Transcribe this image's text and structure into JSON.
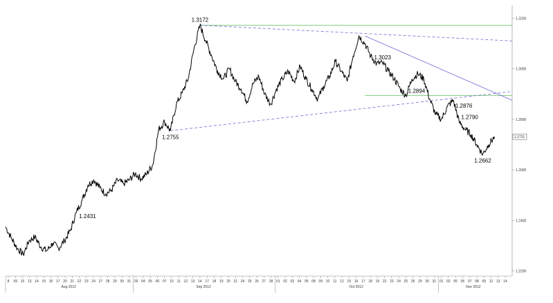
{
  "chart_data": {
    "type": "line",
    "instrument_note": "",
    "title": "",
    "xlabel": "",
    "ylabel": "",
    "ylim": [
      1.218,
      1.325
    ],
    "y_ticks": [
      "1.2200",
      "1.2400",
      "1.2600",
      "1.2800",
      "1.3000",
      "1.3200"
    ],
    "y_tick_values": [
      1.22,
      1.24,
      1.26,
      1.28,
      1.3,
      1.32
    ],
    "last_price_label": "1.2731",
    "last_price_value": 1.2731,
    "colors": {
      "price": "#000000",
      "horizontal_level": "#7fc97f",
      "trendline": "#6b6bd6",
      "axis": "#888888"
    },
    "months": [
      {
        "label": "Aug 2012",
        "start_tick": 1,
        "end_tick": 24
      },
      {
        "label": "Sep 2012",
        "start_tick": 25,
        "end_tick": 47
      },
      {
        "label": "Oct 2012",
        "start_tick": 48,
        "end_tick": 71
      },
      {
        "label": "Nov 2012",
        "start_tick": 72,
        "end_tick": 82
      }
    ],
    "x_ticks": [
      "8",
      "09",
      "10",
      "13",
      "14",
      "15",
      "16",
      "17",
      "20",
      "21",
      "22",
      "23",
      "24",
      "27",
      "28",
      "29",
      "30",
      "31",
      "03",
      "04",
      "05",
      "06",
      "07",
      "10",
      "11",
      "12",
      "13",
      "14",
      "17",
      "18",
      "19",
      "20",
      "21",
      "24",
      "25",
      "26",
      "27",
      "28",
      "01",
      "02",
      "03",
      "04",
      "05",
      "08",
      "09",
      "10",
      "11",
      "12",
      "15",
      "16",
      "17",
      "18",
      "19",
      "22",
      "23",
      "24",
      "25",
      "26",
      "29",
      "30",
      "31",
      "01",
      "02",
      "05",
      "06",
      "07",
      "08",
      "09",
      "12",
      "13",
      "14"
    ],
    "series": [
      {
        "points": [
          [
            0,
            1.2375
          ],
          [
            1,
            1.233
          ],
          [
            2,
            1.229
          ],
          [
            3,
            1.2265
          ],
          [
            4,
            1.232
          ],
          [
            5,
            1.2335
          ],
          [
            6,
            1.2295
          ],
          [
            7,
            1.228
          ],
          [
            8,
            1.231
          ],
          [
            9,
            1.229
          ],
          [
            10,
            1.232
          ],
          [
            11,
            1.236
          ],
          [
            12,
            1.2431
          ],
          [
            13,
            1.248
          ],
          [
            14,
            1.254
          ],
          [
            15,
            1.256
          ],
          [
            16,
            1.253
          ],
          [
            17,
            1.2505
          ],
          [
            18,
            1.252
          ],
          [
            19,
            1.256
          ],
          [
            20,
            1.2545
          ],
          [
            21,
            1.256
          ],
          [
            22,
            1.2585
          ],
          [
            23,
            1.2565
          ],
          [
            24,
            1.2585
          ],
          [
            25,
            1.262
          ],
          [
            26,
            1.276
          ],
          [
            27,
            1.279
          ],
          [
            28,
            1.2755
          ],
          [
            29,
            1.286
          ],
          [
            30,
            1.2905
          ],
          [
            31,
            1.296
          ],
          [
            32,
            1.308
          ],
          [
            33,
            1.3172
          ],
          [
            34,
            1.311
          ],
          [
            35,
            1.305
          ],
          [
            36,
            1.299
          ],
          [
            37,
            1.296
          ],
          [
            38,
            1.3
          ],
          [
            39,
            1.295
          ],
          [
            40,
            1.292
          ],
          [
            41,
            1.287
          ],
          [
            42,
            1.294
          ],
          [
            43,
            1.297
          ],
          [
            44,
            1.29
          ],
          [
            45,
            1.286
          ],
          [
            46,
            1.292
          ],
          [
            47,
            1.296
          ],
          [
            48,
            1.299
          ],
          [
            49,
            1.295
          ],
          [
            50,
            1.301
          ],
          [
            51,
            1.296
          ],
          [
            52,
            1.292
          ],
          [
            53,
            1.288
          ],
          [
            54,
            1.293
          ],
          [
            55,
            1.297
          ],
          [
            56,
            1.303
          ],
          [
            57,
            1.299
          ],
          [
            58,
            1.295
          ],
          [
            59,
            1.305
          ],
          [
            60,
            1.313
          ],
          [
            61,
            1.31
          ],
          [
            62,
            1.305
          ],
          [
            63,
            1.302
          ],
          [
            64,
            1.3023
          ],
          [
            65,
            1.299
          ],
          [
            66,
            1.296
          ],
          [
            67,
            1.292
          ],
          [
            68,
            1.2894
          ],
          [
            69,
            1.296
          ],
          [
            70,
            1.298
          ],
          [
            71,
            1.296
          ],
          [
            72,
            1.288
          ],
          [
            73,
            1.282
          ],
          [
            74,
            1.28
          ],
          [
            75,
            1.285
          ],
          [
            76,
            1.2876
          ],
          [
            77,
            1.279
          ],
          [
            78,
            1.276
          ],
          [
            79,
            1.274
          ],
          [
            80,
            1.27
          ],
          [
            81,
            1.2662
          ],
          [
            82,
            1.27
          ],
          [
            83,
            1.2731
          ]
        ]
      }
    ],
    "annotations": [
      {
        "text": "1.2431",
        "x": 12,
        "y": 1.2431,
        "anchor": "right-below"
      },
      {
        "text": "1.2755",
        "x": 28,
        "y": 1.2755,
        "anchor": "below"
      },
      {
        "text": "1.3172",
        "x": 33,
        "y": 1.3172,
        "anchor": "above"
      },
      {
        "text": "1.3023",
        "x": 64,
        "y": 1.3023,
        "anchor": "above"
      },
      {
        "text": "1.2894",
        "x": 68,
        "y": 1.2894,
        "anchor": "above-right"
      },
      {
        "text": "1.2876",
        "x": 76,
        "y": 1.2876,
        "anchor": "below-right"
      },
      {
        "text": "1.2790",
        "x": 77,
        "y": 1.279,
        "anchor": "above-right"
      },
      {
        "text": "1.2662",
        "x": 81,
        "y": 1.2662,
        "anchor": "below"
      }
    ],
    "horizontal_levels": [
      1.3172,
      1.2894
    ],
    "trendlines": [
      {
        "style": "dashed",
        "from": [
          33,
          1.3172
        ],
        "to": [
          86,
          1.311
        ]
      },
      {
        "style": "solid",
        "from": [
          61,
          1.313
        ],
        "to": [
          86,
          1.2875
        ]
      },
      {
        "style": "dashed",
        "from": [
          28,
          1.2755
        ],
        "to": [
          86,
          1.291
        ]
      }
    ],
    "grid": false,
    "legend": "none"
  }
}
